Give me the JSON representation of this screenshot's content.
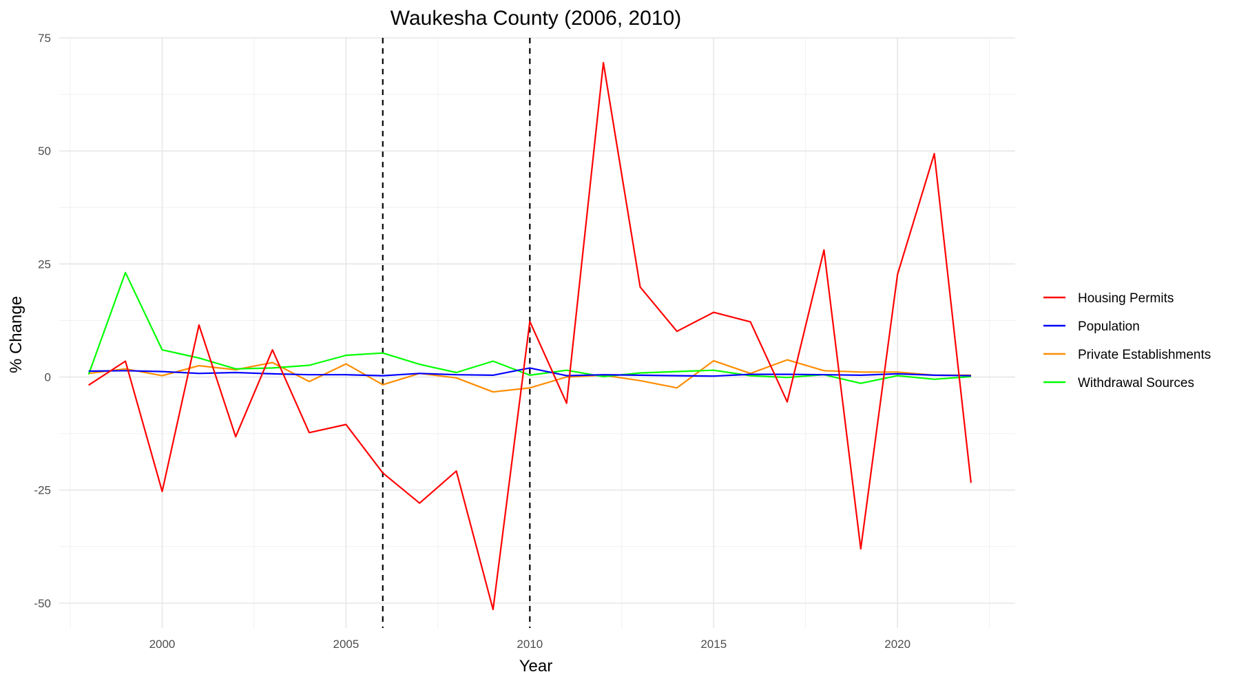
{
  "chart_data": {
    "type": "line",
    "title": "Waukesha County (2006, 2010)",
    "xlabel": "Year",
    "ylabel": "% Change",
    "xlim": [
      1997.2,
      2023.2
    ],
    "ylim": [
      -55.5,
      75
    ],
    "x_ticks": [
      2000,
      2005,
      2010,
      2015,
      2020
    ],
    "x_tick_labels": [
      "2000",
      "2005",
      "2010",
      "2015",
      "2020"
    ],
    "y_ticks": [
      75,
      50,
      25,
      0,
      -25,
      -50
    ],
    "y_tick_labels": [
      "75",
      "50",
      "25",
      "0",
      "-25",
      "-50"
    ],
    "grid": true,
    "legend_position": "right",
    "vlines": [
      2006,
      2010
    ],
    "vline_style": "dashed",
    "vline_color": "#000000",
    "x": [
      1998,
      1999,
      2000,
      2001,
      2002,
      2003,
      2004,
      2005,
      2006,
      2007,
      2008,
      2009,
      2010,
      2011,
      2012,
      2013,
      2014,
      2015,
      2016,
      2017,
      2018,
      2019,
      2020,
      2021,
      2022
    ],
    "series": [
      {
        "name": "Housing Permits",
        "color": "#ff0000",
        "values": [
          -1.8,
          3.5,
          -25.3,
          11.5,
          -13.2,
          6.0,
          -12.3,
          -10.5,
          -21.2,
          -27.9,
          -20.8,
          -51.4,
          12.3,
          -5.8,
          69.5,
          19.9,
          10.1,
          14.3,
          12.2,
          -5.5,
          28.1,
          -38.0,
          22.7,
          49.4,
          -23.4
        ]
      },
      {
        "name": "Population",
        "color": "#0000ff",
        "values": [
          1.3,
          1.4,
          1.2,
          0.8,
          1.0,
          0.7,
          0.5,
          0.5,
          0.3,
          0.8,
          0.5,
          0.4,
          2.0,
          0.3,
          0.5,
          0.4,
          0.3,
          0.2,
          0.6,
          0.6,
          0.5,
          0.4,
          0.7,
          0.4,
          0.3
        ]
      },
      {
        "name": "Private Establishments",
        "color": "#ff8c00",
        "values": [
          0.8,
          1.8,
          0.3,
          2.5,
          1.6,
          3.2,
          -1.0,
          2.9,
          -1.7,
          0.8,
          -0.2,
          -3.3,
          -2.4,
          0.0,
          0.4,
          -0.8,
          -2.4,
          3.6,
          0.8,
          3.8,
          1.4,
          1.1,
          1.1,
          0.4,
          0.4
        ]
      },
      {
        "name": "Withdrawal Sources",
        "color": "#00ff00",
        "values": [
          0.6,
          23.1,
          6.0,
          4.2,
          1.8,
          2.0,
          2.6,
          4.8,
          5.3,
          2.8,
          1.0,
          3.5,
          0.4,
          1.5,
          0.1,
          0.9,
          1.2,
          1.5,
          0.3,
          -0.1,
          0.5,
          -1.4,
          0.3,
          -0.5,
          0.1
        ]
      }
    ]
  }
}
